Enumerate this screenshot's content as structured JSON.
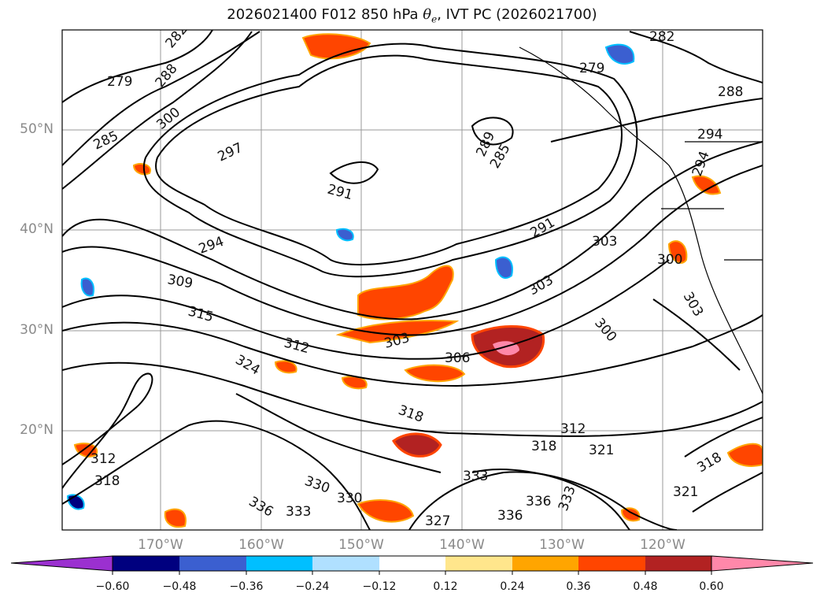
{
  "header": {
    "title_prefix": "2026021400 F012 850 hPa ",
    "theta_symbol": "θ",
    "theta_subscript": "e",
    "title_suffix": ", IVT PC (2026021700)"
  },
  "axes": {
    "lat_labels": [
      "50°N",
      "40°N",
      "30°N",
      "20°N"
    ],
    "lon_labels": [
      "170°W",
      "160°W",
      "150°W",
      "140°W",
      "130°W",
      "120°W"
    ]
  },
  "contour_labels": [
    "282",
    "279",
    "288",
    "300",
    "285",
    "297",
    "291",
    "289",
    "285",
    "291",
    "294",
    "303",
    "309",
    "315",
    "312",
    "303",
    "306",
    "303",
    "300",
    "324",
    "318",
    "318",
    "321",
    "312",
    "330",
    "333",
    "330",
    "336",
    "333",
    "336",
    "327",
    "333",
    "336",
    "318",
    "321",
    "312",
    "318",
    "279",
    "282",
    "288",
    "294",
    "294",
    "300",
    "303"
  ],
  "colorbar": {
    "tick_labels": [
      "−0.60",
      "−0.48",
      "−0.36",
      "−0.24",
      "−0.12",
      "0.12",
      "0.24",
      "0.36",
      "0.48",
      "0.60"
    ],
    "colors": [
      "#9b30d0",
      "#00007f",
      "#3b5fd0",
      "#00bfff",
      "#b0e0ff",
      "#ffffff",
      "#ffe68c",
      "#ffa500",
      "#ff4500",
      "#b22222",
      "#ff88aa"
    ]
  }
}
